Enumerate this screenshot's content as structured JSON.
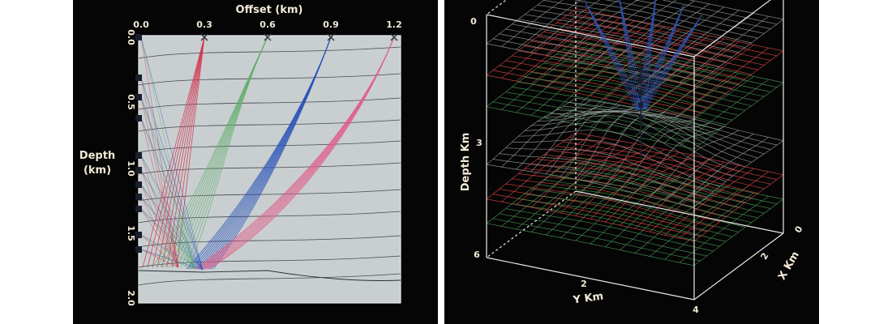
{
  "left": {
    "x_axis_title": "Offset (km)",
    "x_ticks": [
      "0.0",
      "0.3",
      "0.6",
      "0.9",
      "1.2"
    ],
    "y_axis_title_line1": "Depth",
    "y_axis_title_line2": "(km)",
    "y_ticks": [
      "0.0",
      "0.5",
      "1.0",
      "1.5",
      "2.0"
    ],
    "colors": {
      "plot_bg": "#c9cfd1",
      "red": "#d6334f",
      "green": "#5fae6a",
      "blue": "#2d55b8",
      "pink": "#e0608a",
      "receiver": "#1a1f2e"
    }
  },
  "right": {
    "depth_label": "Depth Km",
    "depth_ticks": [
      "0",
      "3",
      "6"
    ],
    "y_label": "Y Km",
    "y_ticks": [
      "2",
      "4"
    ],
    "x_label": "X Km",
    "x_ticks": [
      "2",
      "0"
    ],
    "colors": {
      "gray": "#9aa0a0",
      "red": "#e04848",
      "green": "#4a9a55",
      "blue": "#2d55b8"
    }
  }
}
